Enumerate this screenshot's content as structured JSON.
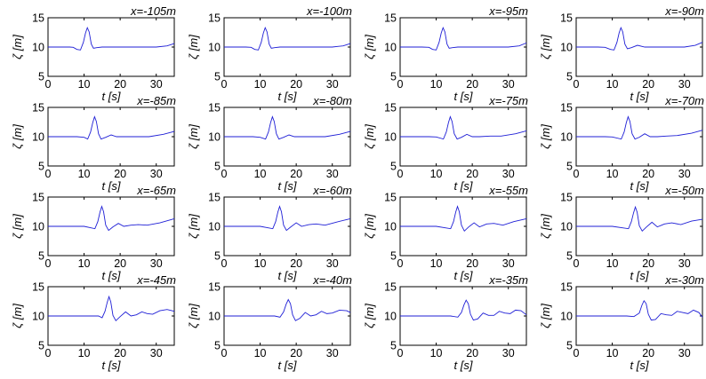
{
  "colors": {
    "series": "#1f1fd6",
    "axis": "#000000",
    "background": "#ffffff"
  },
  "chart_data": [
    {
      "type": "line",
      "title": "x=-105m",
      "xlabel": "t [s]",
      "ylabel": "ζ [m]",
      "xlim": [
        0,
        35
      ],
      "ylim": [
        5,
        15
      ],
      "xticks": [
        "0",
        "10",
        "20",
        "30"
      ],
      "yticks": [
        "5",
        "10",
        "15"
      ],
      "grid": false,
      "x": [
        0,
        2,
        4,
        6,
        7,
        8,
        9,
        9.8,
        10.4,
        10.9,
        11.4,
        12,
        12.6,
        13.5,
        15,
        18,
        22,
        26,
        30,
        33,
        35
      ],
      "y": [
        10,
        10,
        10,
        10,
        9.95,
        9.6,
        9.5,
        10.8,
        12.4,
        13.3,
        12.6,
        10.5,
        9.8,
        9.9,
        10,
        10,
        10,
        10,
        10,
        10.2,
        10.6
      ]
    },
    {
      "type": "line",
      "title": "x=-100m",
      "xlabel": "t [s]",
      "ylabel": "ζ [m]",
      "xlim": [
        0,
        35
      ],
      "ylim": [
        5,
        15
      ],
      "xticks": [
        "0",
        "10",
        "20",
        "30"
      ],
      "yticks": [
        "5",
        "10",
        "15"
      ],
      "grid": false,
      "x": [
        0,
        2,
        4,
        6,
        7.5,
        8.5,
        9.5,
        10.3,
        10.9,
        11.4,
        11.9,
        12.5,
        13.1,
        14,
        15.5,
        18,
        22,
        26,
        30,
        33,
        35
      ],
      "y": [
        10,
        10,
        10,
        10,
        9.95,
        9.6,
        9.5,
        10.8,
        12.4,
        13.3,
        12.6,
        10.5,
        9.8,
        9.9,
        10,
        10,
        10,
        10,
        10,
        10.2,
        10.6
      ]
    },
    {
      "type": "line",
      "title": "x=-95m",
      "xlabel": "t [s]",
      "ylabel": "ζ [m]",
      "xlim": [
        0,
        35
      ],
      "ylim": [
        5,
        15
      ],
      "xticks": [
        "0",
        "10",
        "20",
        "30"
      ],
      "yticks": [
        "5",
        "10",
        "15"
      ],
      "grid": false,
      "x": [
        0,
        2,
        4,
        6,
        8,
        9,
        10,
        10.8,
        11.4,
        11.9,
        12.4,
        13,
        13.6,
        14.5,
        16,
        18,
        22,
        26,
        30,
        33,
        35
      ],
      "y": [
        10,
        10,
        10,
        10,
        9.95,
        9.6,
        9.5,
        10.8,
        12.4,
        13.3,
        12.6,
        10.5,
        9.8,
        9.9,
        10,
        10,
        10,
        10,
        10,
        10.2,
        10.7
      ]
    },
    {
      "type": "line",
      "title": "x=-90m",
      "xlabel": "t [s]",
      "ylabel": "ζ [m]",
      "xlim": [
        0,
        35
      ],
      "ylim": [
        5,
        15
      ],
      "xticks": [
        "0",
        "10",
        "20",
        "30"
      ],
      "yticks": [
        "5",
        "10",
        "15"
      ],
      "grid": false,
      "x": [
        0,
        2,
        4,
        6,
        8,
        9.5,
        10.5,
        11.3,
        11.9,
        12.4,
        12.9,
        13.5,
        14.2,
        15.3,
        17,
        19,
        22,
        26,
        30,
        33,
        35
      ],
      "y": [
        10,
        10,
        10,
        10,
        9.95,
        9.6,
        9.5,
        10.8,
        12.4,
        13.3,
        12.6,
        10.5,
        9.7,
        9.9,
        10.3,
        10,
        10,
        10,
        10,
        10.3,
        10.8
      ]
    },
    {
      "type": "line",
      "title": "x=-85m",
      "xlabel": "t [s]",
      "ylabel": "ζ [m]",
      "xlim": [
        0,
        35
      ],
      "ylim": [
        5,
        15
      ],
      "xticks": [
        "0",
        "10",
        "20",
        "30"
      ],
      "yticks": [
        "5",
        "10",
        "15"
      ],
      "grid": false,
      "x": [
        0,
        2,
        4,
        6,
        8,
        10,
        11,
        11.8,
        12.4,
        12.9,
        13.4,
        14,
        14.7,
        16,
        17.5,
        19,
        21,
        24,
        28,
        32,
        35
      ],
      "y": [
        10,
        10,
        10,
        10,
        10,
        9.9,
        9.6,
        10.8,
        12.4,
        13.4,
        12.6,
        10.5,
        9.6,
        9.9,
        10.3,
        10,
        10,
        10,
        10,
        10.4,
        10.9
      ]
    },
    {
      "type": "line",
      "title": "x=-80m",
      "xlabel": "t [s]",
      "ylabel": "ζ [m]",
      "xlim": [
        0,
        35
      ],
      "ylim": [
        5,
        15
      ],
      "xticks": [
        "0",
        "10",
        "20",
        "30"
      ],
      "yticks": [
        "5",
        "10",
        "15"
      ],
      "grid": false,
      "x": [
        0,
        2,
        4,
        6,
        8,
        10,
        11.5,
        12.3,
        12.9,
        13.4,
        13.9,
        14.5,
        15.2,
        16.5,
        18,
        19.5,
        21.5,
        24,
        28,
        32,
        35
      ],
      "y": [
        10,
        10,
        10,
        10,
        10,
        9.9,
        9.6,
        10.8,
        12.4,
        13.4,
        12.6,
        10.5,
        9.6,
        9.9,
        10.3,
        10,
        10,
        10,
        10,
        10.4,
        10.9
      ]
    },
    {
      "type": "line",
      "title": "x=-75m",
      "xlabel": "t [s]",
      "ylabel": "ζ [m]",
      "xlim": [
        0,
        35
      ],
      "ylim": [
        5,
        15
      ],
      "xticks": [
        "0",
        "10",
        "20",
        "30"
      ],
      "yticks": [
        "5",
        "10",
        "15"
      ],
      "grid": false,
      "x": [
        0,
        2,
        4,
        6,
        8,
        10,
        12,
        12.8,
        13.4,
        13.9,
        14.4,
        15,
        15.8,
        17,
        18.5,
        20,
        22,
        25,
        28,
        32,
        35
      ],
      "y": [
        10,
        10,
        10,
        10,
        10,
        9.95,
        9.6,
        10.8,
        12.4,
        13.4,
        12.6,
        10.5,
        9.6,
        9.9,
        10.4,
        10,
        10,
        10.1,
        10.1,
        10.5,
        11
      ]
    },
    {
      "type": "line",
      "title": "x=-70m",
      "xlabel": "t [s]",
      "ylabel": "ζ [m]",
      "xlim": [
        0,
        35
      ],
      "ylim": [
        5,
        15
      ],
      "xticks": [
        "0",
        "10",
        "20",
        "30"
      ],
      "yticks": [
        "5",
        "10",
        "15"
      ],
      "grid": false,
      "x": [
        0,
        2,
        4,
        6,
        8,
        10,
        12.5,
        13.3,
        13.9,
        14.4,
        14.9,
        15.5,
        16.3,
        17.5,
        19,
        20.5,
        22.5,
        25,
        28,
        32,
        35
      ],
      "y": [
        10,
        10,
        10,
        10,
        10,
        9.95,
        9.6,
        10.8,
        12.4,
        13.4,
        12.6,
        10.5,
        9.6,
        9.9,
        10.5,
        10,
        10,
        10.1,
        10.2,
        10.6,
        11.1
      ]
    },
    {
      "type": "line",
      "title": "x=-65m",
      "xlabel": "t [s]",
      "ylabel": "ζ [m]",
      "xlim": [
        0,
        35
      ],
      "ylim": [
        5,
        15
      ],
      "xticks": [
        "0",
        "10",
        "20",
        "30"
      ],
      "yticks": [
        "5",
        "10",
        "15"
      ],
      "grid": false,
      "x": [
        0,
        2,
        4,
        6,
        8,
        10,
        13,
        13.8,
        14.4,
        14.9,
        15.4,
        16,
        16.8,
        18,
        19.5,
        21,
        23,
        25,
        27.5,
        31,
        35
      ],
      "y": [
        10,
        10,
        10,
        10,
        10,
        10,
        9.6,
        10.8,
        12.4,
        13.4,
        12.5,
        10.2,
        9.3,
        9.9,
        10.5,
        10,
        10.2,
        10.3,
        10.2,
        10.6,
        11.3
      ]
    },
    {
      "type": "line",
      "title": "x=-60m",
      "xlabel": "t [s]",
      "ylabel": "ζ [m]",
      "xlim": [
        0,
        35
      ],
      "ylim": [
        5,
        15
      ],
      "xticks": [
        "0",
        "10",
        "20",
        "30"
      ],
      "yticks": [
        "5",
        "10",
        "15"
      ],
      "grid": false,
      "x": [
        0,
        2,
        4,
        6,
        8,
        10,
        13.5,
        14.3,
        14.9,
        15.4,
        15.9,
        16.5,
        17.3,
        18.5,
        20,
        21.5,
        23.5,
        25.5,
        28,
        31,
        35
      ],
      "y": [
        10,
        10,
        10,
        10,
        10,
        10,
        9.6,
        10.8,
        12.4,
        13.4,
        12.5,
        10.2,
        9.3,
        9.9,
        10.6,
        10,
        10.3,
        10.4,
        10.2,
        10.7,
        11.3
      ]
    },
    {
      "type": "line",
      "title": "x=-55m",
      "xlabel": "t [s]",
      "ylabel": "ζ [m]",
      "xlim": [
        0,
        35
      ],
      "ylim": [
        5,
        15
      ],
      "xticks": [
        "0",
        "10",
        "20",
        "30"
      ],
      "yticks": [
        "5",
        "10",
        "15"
      ],
      "grid": false,
      "x": [
        0,
        2,
        4,
        6,
        8,
        10,
        14,
        14.8,
        15.4,
        15.9,
        16.4,
        17,
        17.8,
        19,
        20.5,
        22,
        24,
        26,
        28.5,
        31.5,
        35
      ],
      "y": [
        10,
        10,
        10,
        10,
        10,
        10,
        9.6,
        10.8,
        12.4,
        13.4,
        12.5,
        10.2,
        9.2,
        9.9,
        10.6,
        9.9,
        10.4,
        10.5,
        10.2,
        10.8,
        11.3
      ]
    },
    {
      "type": "line",
      "title": "x=-50m",
      "xlabel": "t [s]",
      "ylabel": "ζ [m]",
      "xlim": [
        0,
        35
      ],
      "ylim": [
        5,
        15
      ],
      "xticks": [
        "0",
        "10",
        "20",
        "30"
      ],
      "yticks": [
        "5",
        "10",
        "15"
      ],
      "grid": false,
      "x": [
        0,
        2,
        4,
        6,
        8,
        10,
        14.5,
        15.3,
        15.9,
        16.4,
        16.9,
        17.5,
        18.3,
        19.5,
        21,
        22.5,
        24.5,
        26.5,
        29,
        32,
        35
      ],
      "y": [
        10,
        10,
        10,
        10,
        10,
        10,
        9.6,
        10.8,
        12.3,
        13.3,
        12.4,
        10.1,
        9.2,
        9.9,
        10.7,
        9.9,
        10.4,
        10.6,
        10.3,
        10.9,
        11.2
      ]
    },
    {
      "type": "line",
      "title": "x=-45m",
      "xlabel": "t [s]",
      "ylabel": "ζ [m]",
      "xlim": [
        0,
        35
      ],
      "ylim": [
        5,
        15
      ],
      "xticks": [
        "0",
        "10",
        "20",
        "30"
      ],
      "yticks": [
        "5",
        "10",
        "15"
      ],
      "grid": false,
      "x": [
        0,
        2,
        4,
        6,
        8,
        10,
        12,
        14,
        15,
        15.8,
        16.4,
        16.9,
        17.4,
        18,
        18.8,
        20,
        21.5,
        23,
        24.5,
        26,
        27.5,
        29,
        31,
        33,
        35
      ],
      "y": [
        10,
        10,
        10,
        10,
        10,
        10,
        10,
        10,
        9.7,
        10.8,
        12.3,
        13.3,
        12.4,
        10.1,
        9.2,
        9.9,
        10.7,
        10,
        10.2,
        10.7,
        10.4,
        10.3,
        10.9,
        11.1,
        10.8
      ]
    },
    {
      "type": "line",
      "title": "x=-40m",
      "xlabel": "t [s]",
      "ylabel": "ζ [m]",
      "xlim": [
        0,
        35
      ],
      "ylim": [
        5,
        15
      ],
      "xticks": [
        "0",
        "10",
        "20",
        "30"
      ],
      "yticks": [
        "5",
        "10",
        "15"
      ],
      "grid": false,
      "x": [
        0,
        2,
        4,
        6,
        8,
        10,
        12,
        14,
        15.5,
        16.5,
        17.2,
        17.8,
        18.4,
        19,
        19.8,
        21,
        22.5,
        24,
        25.5,
        27,
        28.5,
        30,
        32,
        34,
        35
      ],
      "y": [
        10,
        10,
        10,
        10,
        10,
        10,
        10,
        10,
        9.8,
        10.7,
        12,
        12.8,
        12.1,
        10.2,
        9.2,
        9.6,
        10.6,
        10,
        10.2,
        10.8,
        10.4,
        10.5,
        11,
        10.9,
        10.6
      ]
    },
    {
      "type": "line",
      "title": "x=-35m",
      "xlabel": "t [s]",
      "ylabel": "ζ [m]",
      "xlim": [
        0,
        35
      ],
      "ylim": [
        5,
        15
      ],
      "xticks": [
        "0",
        "10",
        "20",
        "30"
      ],
      "yticks": [
        "5",
        "10",
        "15"
      ],
      "grid": false,
      "x": [
        0,
        2,
        4,
        6,
        8,
        10,
        12,
        14,
        16,
        17,
        17.7,
        18.3,
        18.9,
        19.5,
        20.3,
        21.5,
        23,
        24.5,
        26,
        27.5,
        29,
        30.5,
        32,
        33.5,
        35
      ],
      "y": [
        10,
        10,
        10,
        10,
        10,
        10,
        10,
        10,
        9.8,
        10.6,
        11.9,
        12.7,
        12.1,
        10.3,
        9.3,
        9.5,
        10.5,
        10.1,
        10.1,
        10.8,
        10.5,
        10.4,
        11,
        10.9,
        10.2
      ]
    },
    {
      "type": "line",
      "title": "x=-30m",
      "xlabel": "t [s]",
      "ylabel": "ζ [m]",
      "xlim": [
        0,
        35
      ],
      "ylim": [
        5,
        15
      ],
      "xticks": [
        "0",
        "10",
        "20",
        "30"
      ],
      "yticks": [
        "5",
        "10",
        "15"
      ],
      "grid": false,
      "x": [
        0,
        2,
        4,
        6,
        8,
        10,
        12,
        14,
        16,
        17.5,
        18.2,
        18.8,
        19.4,
        20,
        20.8,
        22,
        23.5,
        25,
        26.5,
        28,
        29.5,
        31,
        32.5,
        34,
        35
      ],
      "y": [
        10,
        10,
        10,
        10,
        10,
        10,
        10,
        10,
        9.9,
        10.5,
        11.8,
        12.6,
        12.1,
        10.3,
        9.3,
        9.4,
        10.4,
        10.2,
        10.1,
        10.8,
        10.6,
        10.4,
        11,
        10.6,
        9.8
      ]
    }
  ]
}
